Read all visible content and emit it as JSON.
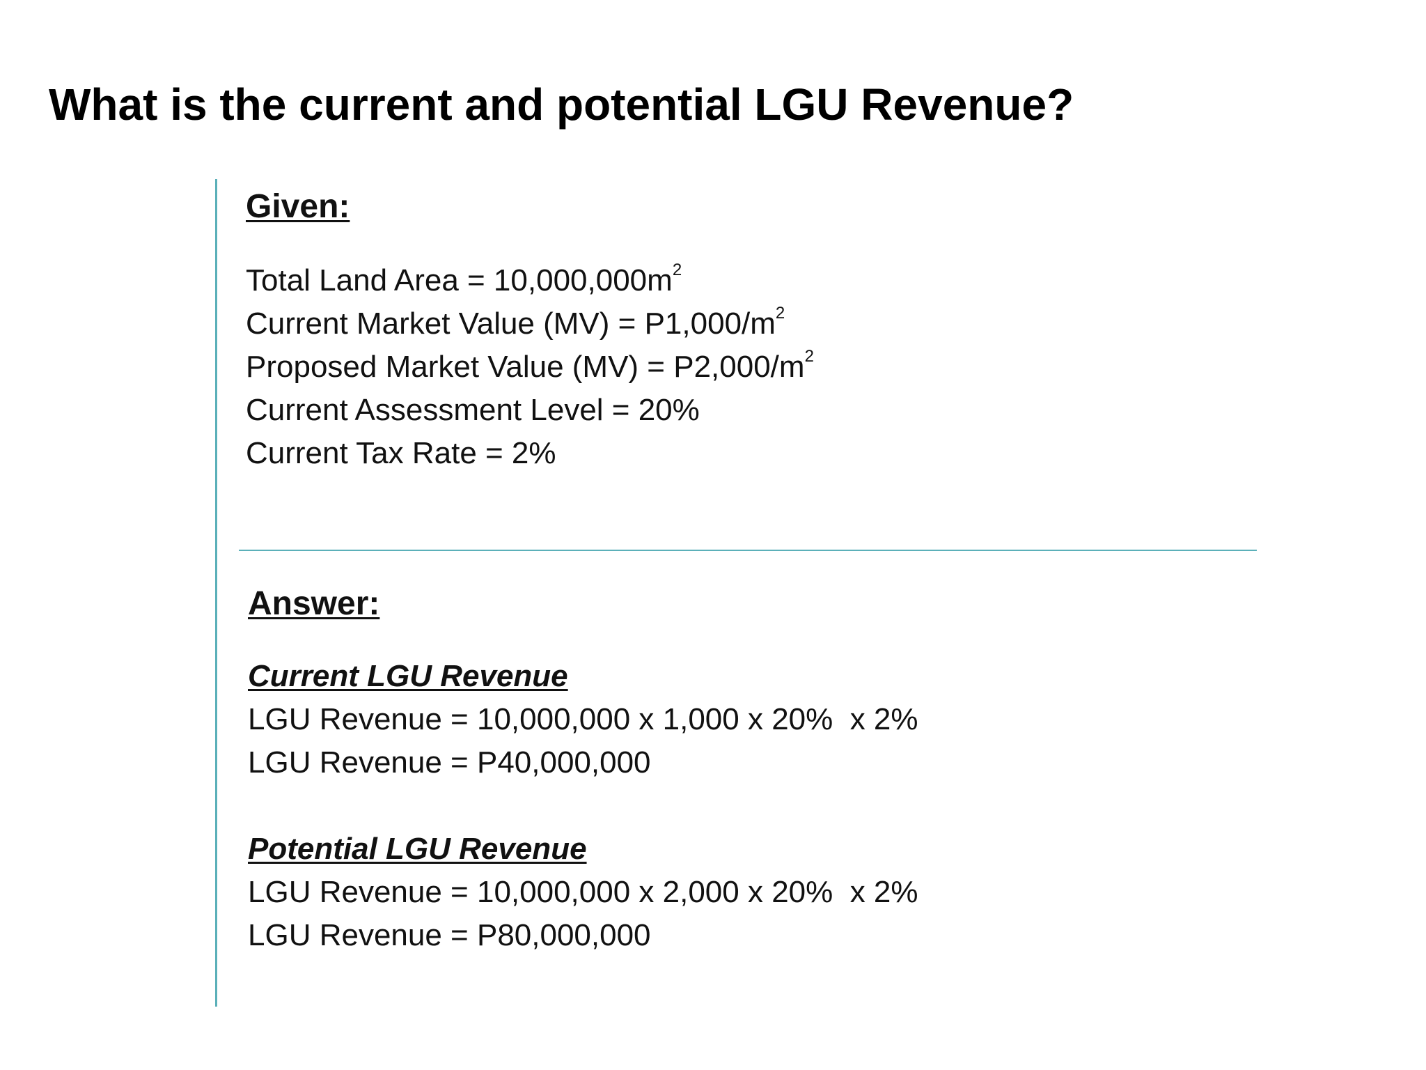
{
  "title": "What is the current and potential LGU Revenue?",
  "given": {
    "heading": "Given:",
    "items": [
      {
        "text": "Total Land Area = 10,000,000m",
        "sup": "2"
      },
      {
        "text": "Current Market Value (MV) = P1,000/m",
        "sup": "2"
      },
      {
        "text": "Proposed Market Value (MV) = P2,000/m",
        "sup": "2"
      },
      {
        "text": "Current Assessment Level = 20%"
      },
      {
        "text": "Current Tax Rate = 2%"
      }
    ]
  },
  "answer": {
    "heading": "Answer:",
    "current": {
      "heading": "Current LGU Revenue",
      "formula": "LGU Revenue = 10,000,000 x 1,000 x 20%  x 2%",
      "result": "LGU Revenue = P40,000,000"
    },
    "potential": {
      "heading": "Potential LGU Revenue",
      "formula": "LGU Revenue = 10,000,000 x 2,000 x 20%  x 2%",
      "result": "LGU Revenue = P80,000,000"
    }
  },
  "colors": {
    "rule": "#5bb0b9",
    "text": "#111111"
  }
}
